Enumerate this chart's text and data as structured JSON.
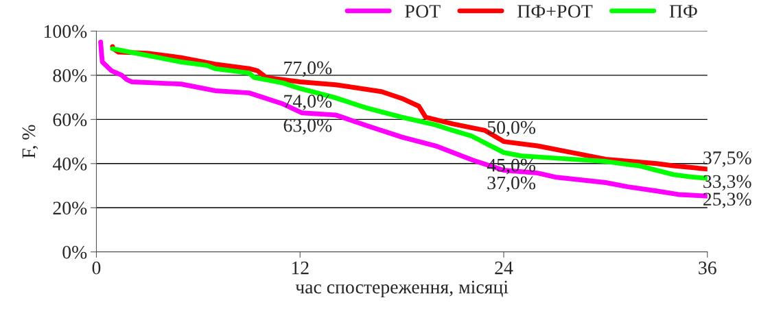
{
  "chart_data": {
    "type": "line",
    "xlabel": "час спостереження, місяці",
    "ylabel": "F, %",
    "xlim": [
      0,
      36
    ],
    "xticks": [
      0,
      12,
      24,
      36
    ],
    "ylim": [
      0,
      100
    ],
    "yticks": [
      {
        "value": 0,
        "label": "0%"
      },
      {
        "value": 20,
        "label": "20%"
      },
      {
        "value": 40,
        "label": "40%"
      },
      {
        "value": 60,
        "label": "60%"
      },
      {
        "value": 80,
        "label": "80%"
      },
      {
        "value": 100,
        "label": "100%"
      }
    ],
    "grid": "y",
    "legend": "top right",
    "marker": "none",
    "line_style": "solid",
    "series": [
      {
        "name": "РОТ",
        "color": "#ff00ff",
        "x": [
          0.25,
          0.3,
          0.35,
          0.9,
          1.5,
          1.8,
          2.1,
          5,
          7,
          9,
          11,
          12.1,
          14.1,
          16,
          18,
          20,
          22.2,
          24,
          26,
          27.1,
          30,
          31.3,
          33,
          34.3,
          36
        ],
        "values": [
          95,
          90,
          86,
          82,
          80,
          78,
          77,
          76,
          73,
          72,
          67,
          63,
          62,
          57,
          52,
          48,
          41.5,
          37,
          35.7,
          33.8,
          31.4,
          29.5,
          27.6,
          26,
          25.3
        ]
      },
      {
        "name": "ПФ+РОТ",
        "color": "#ff0000",
        "x": [
          0.95,
          1.0,
          1.3,
          3,
          5,
          7,
          8,
          9,
          9.5,
          10,
          12,
          14.1,
          16.8,
          18,
          19,
          19.4,
          21,
          22.9,
          24,
          26,
          28,
          30,
          33,
          34,
          36
        ],
        "values": [
          93,
          92,
          90.5,
          90,
          88,
          85,
          84,
          83,
          82,
          79,
          77,
          75.7,
          72.6,
          69.5,
          66,
          61,
          58,
          55,
          50,
          48,
          45,
          42,
          40,
          39,
          37.5
        ]
      },
      {
        "name": "ПФ",
        "color": "#00ff00",
        "x": [
          0.95,
          3,
          5,
          6.5,
          7,
          8,
          9,
          9.3,
          11,
          12,
          14,
          16,
          18,
          20,
          21,
          22.1,
          24,
          25,
          26,
          28,
          30,
          31.4,
          32,
          34,
          35,
          36
        ],
        "values": [
          92,
          89,
          86,
          84.5,
          83,
          82,
          81,
          79,
          76.5,
          74,
          70,
          65,
          61,
          57.5,
          55,
          52.5,
          45,
          43.5,
          43,
          42,
          41,
          39.5,
          39,
          35,
          34,
          33.3
        ]
      }
    ],
    "annotations": [
      {
        "text": "63,0%",
        "x": 12,
        "y": 63
      },
      {
        "text": "37,0%",
        "x": 24,
        "y": 37
      },
      {
        "text": "25,3%",
        "x": 36,
        "y": 25.3
      },
      {
        "text": "77,0%",
        "x": 12,
        "y": 77
      },
      {
        "text": "50,0%",
        "x": 24,
        "y": 50
      },
      {
        "text": "37,5%",
        "x": 36,
        "y": 37.5
      },
      {
        "text": "74,0%",
        "x": 12,
        "y": 74
      },
      {
        "text": "45,0%",
        "x": 24,
        "y": 45
      },
      {
        "text": "33,3%",
        "x": 36,
        "y": 33.3
      }
    ]
  }
}
